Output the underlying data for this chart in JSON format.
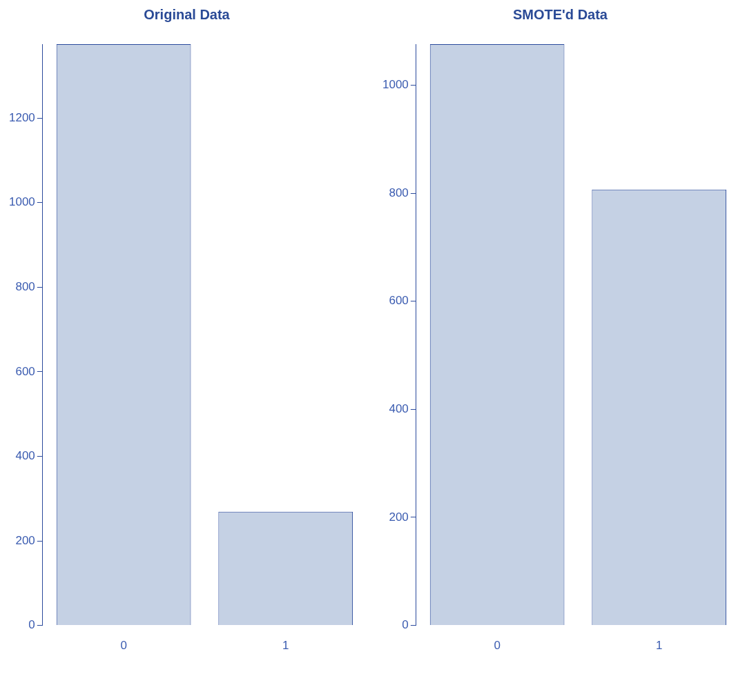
{
  "chart_data": [
    {
      "type": "bar",
      "title": "Original Data",
      "categories": [
        "0",
        "1"
      ],
      "values": [
        1375,
        269
      ],
      "color": "#c5d1e4",
      "ylim": [
        0,
        1375
      ],
      "yticks": [
        0,
        200,
        400,
        600,
        800,
        1000,
        1200
      ],
      "grid": false
    },
    {
      "type": "bar",
      "title": "SMOTE'd Data",
      "categories": [
        "0",
        "1"
      ],
      "values": [
        1076,
        807
      ],
      "color": "#c5d1e4",
      "ylim": [
        0,
        1076
      ],
      "yticks": [
        0,
        200,
        400,
        600,
        800,
        1000
      ],
      "grid": false
    }
  ]
}
